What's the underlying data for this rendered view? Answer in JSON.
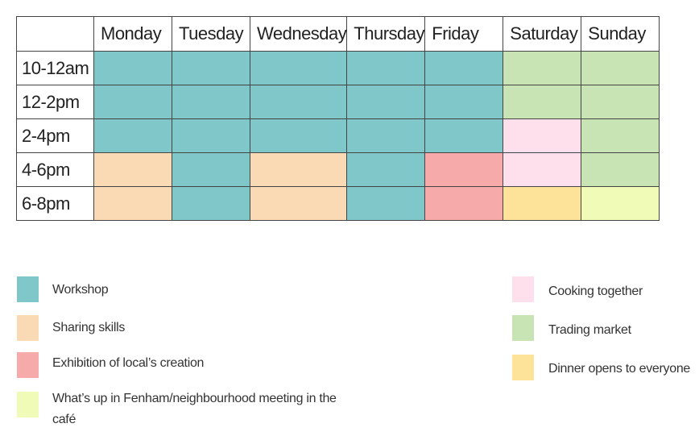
{
  "days": [
    "Monday",
    "Tuesday",
    "Wednesday",
    "Thursday",
    "Friday",
    "Saturday",
    "Sunday"
  ],
  "time_slots": [
    "10-12am",
    "12-2pm",
    "2-4pm",
    "4-6pm",
    "6-8pm"
  ],
  "schedule": [
    [
      "workshop",
      "workshop",
      "workshop",
      "workshop",
      "workshop",
      "trading",
      "trading"
    ],
    [
      "workshop",
      "workshop",
      "workshop",
      "workshop",
      "workshop",
      "trading",
      "trading"
    ],
    [
      "workshop",
      "workshop",
      "workshop",
      "workshop",
      "workshop",
      "cooking",
      "trading"
    ],
    [
      "sharing",
      "workshop",
      "sharing",
      "workshop",
      "exhibition",
      "cooking",
      "trading"
    ],
    [
      "sharing",
      "workshop",
      "sharing",
      "workshop",
      "exhibition",
      "dinner",
      "whatsup"
    ]
  ],
  "activity_colors": {
    "workshop": "#7fc7c8",
    "sharing": "#fad9b5",
    "exhibition": "#f6aaaa",
    "whatsup": "#f0fbb8",
    "cooking": "#fde0ec",
    "trading": "#c8e3b4",
    "dinner": "#fde39a"
  },
  "legend": [
    {
      "key": "workshop",
      "label": "Workshop"
    },
    {
      "key": "sharing",
      "label": "Sharing skills"
    },
    {
      "key": "exhibition",
      "label": "Exhibition of local’s creation"
    },
    {
      "key": "whatsup",
      "label": "What’s up in Fenham/neighbourhood meeting in the café"
    },
    {
      "key": "cooking",
      "label": "Cooking together"
    },
    {
      "key": "trading",
      "label": "Trading market"
    },
    {
      "key": "dinner",
      "label": "Dinner opens to everyone"
    }
  ]
}
